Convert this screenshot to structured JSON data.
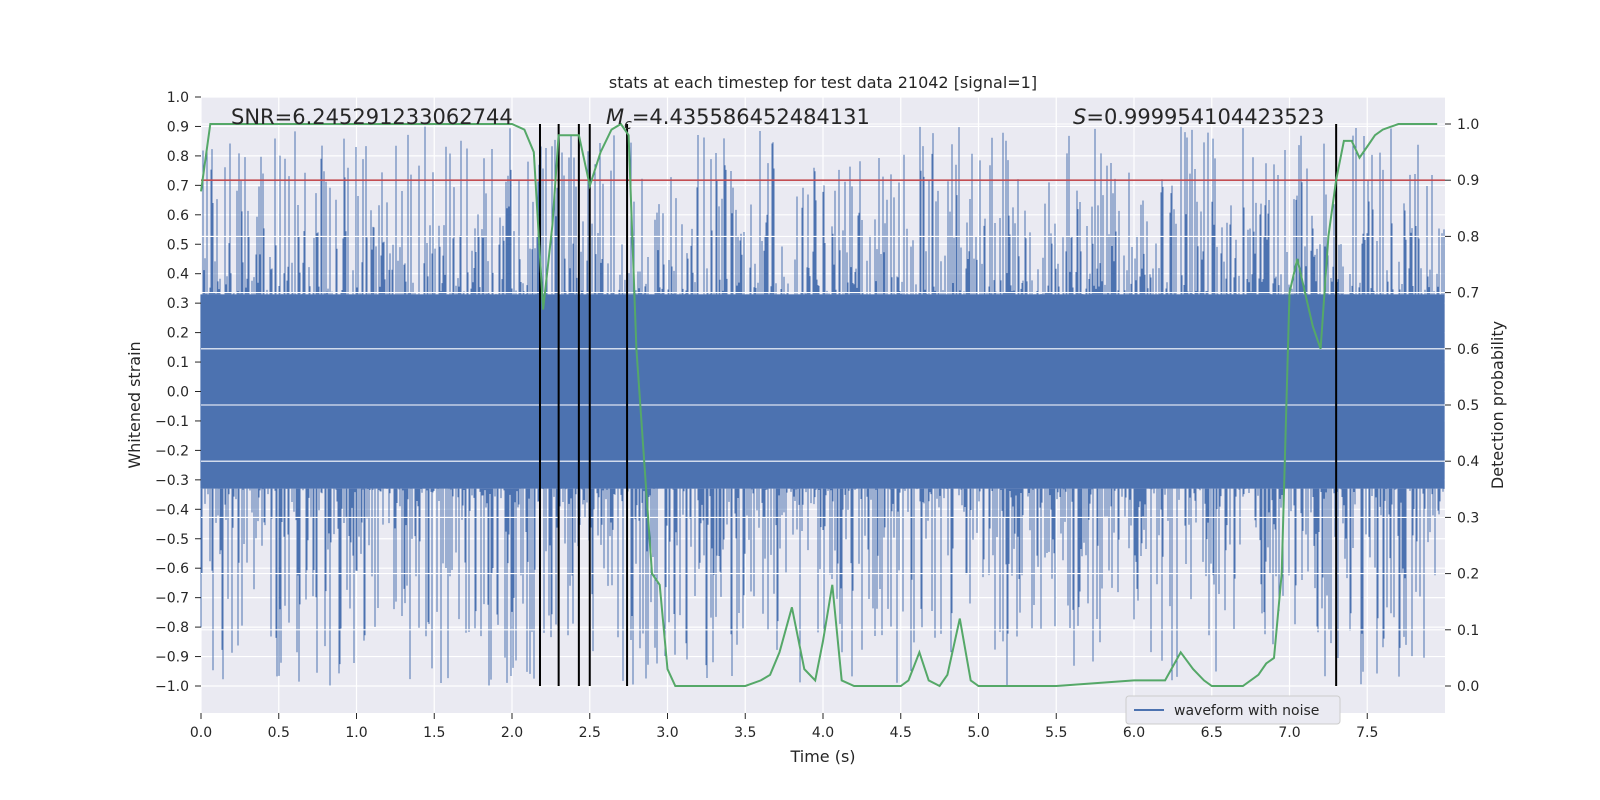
{
  "chart_data": {
    "type": "line",
    "title": "stats at each timestep for test data 21042 [signal=1]",
    "xlabel": "Time (s)",
    "ylabel": "Whitened strain",
    "y2label": "Detection probability",
    "xlim": [
      0.0,
      8.0
    ],
    "ylim": [
      -1.0,
      1.0
    ],
    "y2lim": [
      0.0,
      1.0
    ],
    "xticks": [
      "0.0",
      "0.5",
      "1.0",
      "1.5",
      "2.0",
      "2.5",
      "3.0",
      "3.5",
      "4.0",
      "4.5",
      "5.0",
      "5.5",
      "6.0",
      "6.5",
      "7.0",
      "7.5"
    ],
    "yticks": [
      "1.0",
      "0.9",
      "0.8",
      "0.7",
      "0.6",
      "0.5",
      "0.4",
      "0.3",
      "0.2",
      "0.1",
      "0.0",
      "−0.1",
      "−0.2",
      "−0.3",
      "−0.4",
      "−0.5",
      "−0.6",
      "−0.7",
      "−0.8",
      "−0.9",
      "−1.0"
    ],
    "y2ticks": [
      "1.0",
      "0.9",
      "0.8",
      "0.7",
      "0.6",
      "0.5",
      "0.4",
      "0.3",
      "0.2",
      "0.1",
      "0.0"
    ],
    "annotations": {
      "snr": "SNR=6.245291233062744",
      "mc": "=4.435586452484131",
      "mc_symbol": "M",
      "mc_sub": "c",
      "s": "=0.999954104423523",
      "s_symbol": "S"
    },
    "threshold": 0.9,
    "vertical_lines_x": [
      2.18,
      2.3,
      2.43,
      2.5,
      2.74,
      7.3
    ],
    "waveform": {
      "name": "waveform with noise",
      "color": "#4c72b0",
      "band": 0.33,
      "peak_high": 0.9,
      "peak_low": -1.0
    },
    "probability": {
      "color": "#55a868",
      "x": [
        0.0,
        0.06,
        0.12,
        0.5,
        1.0,
        1.5,
        2.0,
        2.08,
        2.14,
        2.2,
        2.26,
        2.3,
        2.37,
        2.43,
        2.5,
        2.57,
        2.64,
        2.7,
        2.75,
        2.8,
        2.9,
        2.95,
        3.0,
        3.05,
        3.1,
        3.3,
        3.5,
        3.6,
        3.66,
        3.72,
        3.8,
        3.88,
        3.95,
        4.0,
        4.06,
        4.12,
        4.2,
        4.5,
        4.55,
        4.62,
        4.68,
        4.75,
        4.8,
        4.88,
        4.95,
        5.0,
        5.5,
        6.0,
        6.2,
        6.3,
        6.38,
        6.45,
        6.5,
        6.6,
        6.7,
        6.8,
        6.85,
        6.9,
        6.95,
        7.0,
        7.05,
        7.1,
        7.15,
        7.2,
        7.25,
        7.3,
        7.35,
        7.4,
        7.45,
        7.5,
        7.55,
        7.6,
        7.7,
        7.8,
        7.95
      ],
      "y": [
        0.88,
        1.0,
        1.0,
        1.0,
        1.0,
        1.0,
        1.0,
        0.99,
        0.95,
        0.67,
        0.82,
        0.98,
        0.98,
        0.98,
        0.89,
        0.95,
        0.99,
        1.0,
        0.98,
        0.6,
        0.2,
        0.18,
        0.03,
        0.0,
        0.0,
        0.0,
        0.0,
        0.01,
        0.02,
        0.06,
        0.14,
        0.03,
        0.01,
        0.08,
        0.18,
        0.01,
        0.0,
        0.0,
        0.01,
        0.06,
        0.01,
        0.0,
        0.02,
        0.12,
        0.01,
        0.0,
        0.0,
        0.01,
        0.01,
        0.06,
        0.03,
        0.01,
        0.0,
        0.0,
        0.0,
        0.02,
        0.04,
        0.05,
        0.2,
        0.7,
        0.76,
        0.7,
        0.64,
        0.6,
        0.8,
        0.9,
        0.97,
        0.97,
        0.94,
        0.96,
        0.98,
        0.99,
        1.0,
        1.0,
        1.0
      ]
    },
    "legend": {
      "position": "lower-center",
      "entries": [
        "waveform with noise"
      ]
    }
  }
}
